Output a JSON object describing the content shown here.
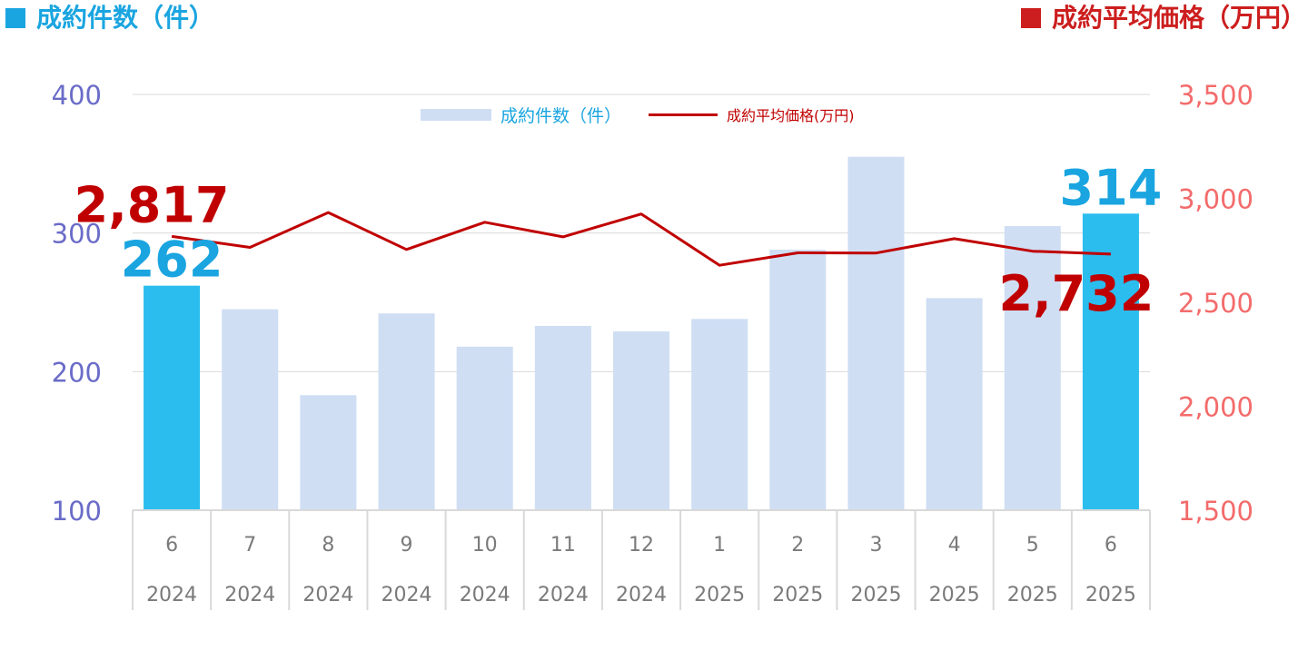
{
  "header": {
    "left_title": "成約件数（件）",
    "right_title": "成約平均価格（万円）"
  },
  "colors": {
    "bar_normal": "#cfdef3",
    "bar_highlight": "#2bbdee",
    "line": "#c00000",
    "left_axis": "#6a6cc8",
    "right_axis": "#f36b6b",
    "left_header": "#1aa5e0",
    "right_header": "#cc1e1e",
    "label_count": "#1aa5e0",
    "label_price": "#c00000",
    "tick_text": "#7a7a7a",
    "grid": "#d9d9d9"
  },
  "chart_data": {
    "type": "bar+line",
    "categories": [
      {
        "month": "6",
        "year": "2024"
      },
      {
        "month": "7",
        "year": "2024"
      },
      {
        "month": "8",
        "year": "2024"
      },
      {
        "month": "9",
        "year": "2024"
      },
      {
        "month": "10",
        "year": "2024"
      },
      {
        "month": "11",
        "year": "2024"
      },
      {
        "month": "12",
        "year": "2024"
      },
      {
        "month": "1",
        "year": "2025"
      },
      {
        "month": "2",
        "year": "2025"
      },
      {
        "month": "3",
        "year": "2025"
      },
      {
        "month": "4",
        "year": "2025"
      },
      {
        "month": "5",
        "year": "2025"
      },
      {
        "month": "6",
        "year": "2025"
      }
    ],
    "series": [
      {
        "name": "成約件数（件）",
        "type": "bar",
        "axis": "left",
        "values": [
          262,
          245,
          183,
          242,
          218,
          233,
          229,
          238,
          288,
          355,
          253,
          305,
          314
        ],
        "highlight": [
          true,
          false,
          false,
          false,
          false,
          false,
          false,
          false,
          false,
          false,
          false,
          false,
          true
        ]
      },
      {
        "name": "成約平均価格(万円)",
        "type": "line",
        "axis": "right",
        "values": [
          2817,
          2764,
          2932,
          2754,
          2885,
          2815,
          2925,
          2678,
          2738,
          2737,
          2806,
          2746,
          2732
        ]
      }
    ],
    "left_axis": {
      "min": 100,
      "max": 400,
      "ticks": [
        "100",
        "200",
        "300",
        "400"
      ]
    },
    "right_axis": {
      "min": 1500,
      "max": 3500,
      "ticks": [
        "1,500",
        "2,000",
        "2,500",
        "3,000",
        "3,500"
      ]
    },
    "data_labels": [
      {
        "text": "262",
        "series": "count",
        "index": 0
      },
      {
        "text": "314",
        "series": "count",
        "index": 12
      },
      {
        "text": "2,817",
        "series": "price",
        "index": 0
      },
      {
        "text": "2,732",
        "series": "price",
        "index": 12
      }
    ],
    "legend": [
      {
        "label": "成約件数（件）",
        "kind": "bar"
      },
      {
        "label": "成約平均価格(万円)",
        "kind": "line"
      }
    ],
    "legend_position": "top",
    "grid": true
  }
}
